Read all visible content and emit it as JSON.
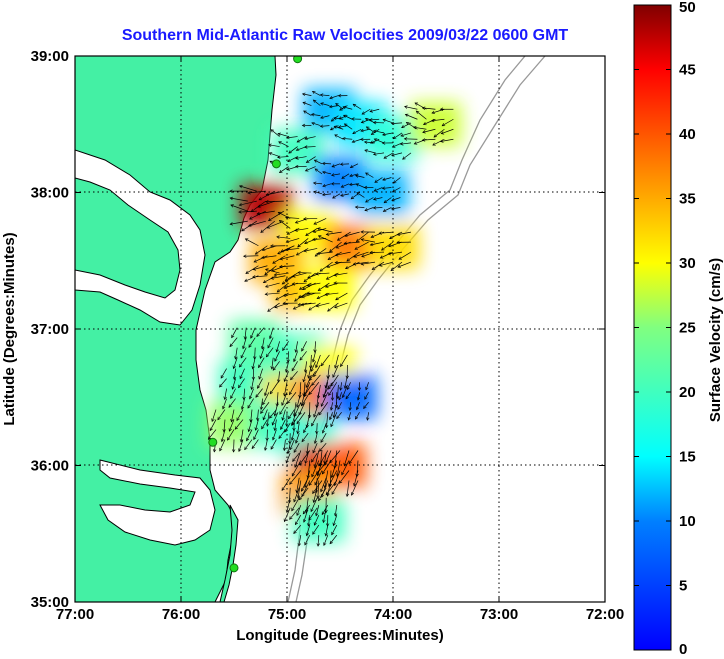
{
  "chart_data": {
    "type": "heatmap",
    "title": "Southern Mid-Atlantic Raw Velocities 2009/03/22 0600 GMT",
    "xlabel": "Longitude (Degrees:Minutes)",
    "ylabel": "Latitude (Degrees:Minutes)",
    "colorbar_label": "Surface Velocity (cm/s)",
    "x_ticks": [
      "77:00",
      "76:00",
      "75:00",
      "74:00",
      "73:00",
      "72:00"
    ],
    "y_ticks": [
      "39:00",
      "38:00",
      "37:00",
      "36:00",
      "35:00"
    ],
    "colorbar_ticks": [
      "0",
      "5",
      "10",
      "15",
      "20",
      "25",
      "30",
      "35",
      "40",
      "45",
      "50"
    ],
    "xlim_deg_west": [
      77,
      72
    ],
    "ylim_deg_north": [
      35,
      39
    ],
    "clim": [
      0,
      50
    ],
    "grid": "dotted",
    "colormap": "jet",
    "land_color": "#44f0a4",
    "vector_color": "#000000",
    "stations": [
      {
        "lon": 74.9,
        "lat": 38.98
      },
      {
        "lon": 75.1,
        "lat": 38.21
      },
      {
        "lon": 75.7,
        "lat": 36.17
      },
      {
        "lon": 75.5,
        "lat": 35.25
      }
    ],
    "velocity_field": [
      {
        "lon": 74.6,
        "lat": 38.6,
        "v": 12
      },
      {
        "lon": 74.3,
        "lat": 38.5,
        "v": 14
      },
      {
        "lon": 74.0,
        "lat": 38.4,
        "v": 18
      },
      {
        "lon": 73.6,
        "lat": 38.5,
        "v": 28
      },
      {
        "lon": 74.9,
        "lat": 38.3,
        "v": 20
      },
      {
        "lon": 74.5,
        "lat": 38.1,
        "v": 10
      },
      {
        "lon": 74.1,
        "lat": 38.0,
        "v": 12
      },
      {
        "lon": 75.2,
        "lat": 37.9,
        "v": 48
      },
      {
        "lon": 74.8,
        "lat": 37.7,
        "v": 30
      },
      {
        "lon": 74.4,
        "lat": 37.6,
        "v": 38
      },
      {
        "lon": 74.0,
        "lat": 37.6,
        "v": 32
      },
      {
        "lon": 75.1,
        "lat": 37.5,
        "v": 35
      },
      {
        "lon": 74.9,
        "lat": 37.3,
        "v": 34
      },
      {
        "lon": 74.6,
        "lat": 37.3,
        "v": 30
      },
      {
        "lon": 75.3,
        "lat": 36.9,
        "v": 22
      },
      {
        "lon": 74.9,
        "lat": 36.8,
        "v": 20
      },
      {
        "lon": 74.6,
        "lat": 36.7,
        "v": 30
      },
      {
        "lon": 75.4,
        "lat": 36.6,
        "v": 20
      },
      {
        "lon": 75.0,
        "lat": 36.5,
        "v": 32
      },
      {
        "lon": 74.7,
        "lat": 36.5,
        "v": 38
      },
      {
        "lon": 74.4,
        "lat": 36.5,
        "v": 8
      },
      {
        "lon": 75.5,
        "lat": 36.3,
        "v": 26
      },
      {
        "lon": 75.1,
        "lat": 36.3,
        "v": 20
      },
      {
        "lon": 74.8,
        "lat": 36.2,
        "v": 18
      },
      {
        "lon": 74.7,
        "lat": 36.0,
        "v": 47
      },
      {
        "lon": 74.5,
        "lat": 36.0,
        "v": 40
      },
      {
        "lon": 74.8,
        "lat": 35.8,
        "v": 36
      },
      {
        "lon": 74.7,
        "lat": 35.6,
        "v": 20
      }
    ]
  }
}
